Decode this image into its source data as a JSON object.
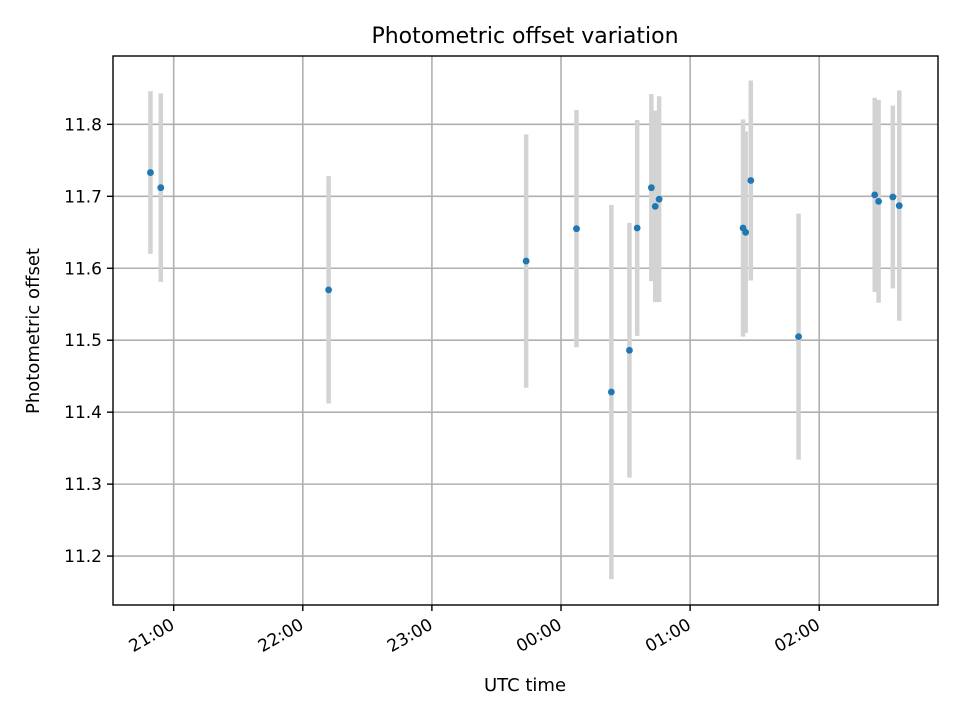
{
  "chart_data": {
    "type": "scatter",
    "title": "Photometric offset variation",
    "xlabel": "UTC time",
    "ylabel": "Photometric offset",
    "x_units": "hours since 21:00 UTC",
    "xlim": [
      -0.47,
      5.92
    ],
    "ylim": [
      11.132,
      11.895
    ],
    "x_ticks": [
      {
        "value": 0,
        "label": "21:00"
      },
      {
        "value": 1,
        "label": "22:00"
      },
      {
        "value": 2,
        "label": "23:00"
      },
      {
        "value": 3,
        "label": "00:00"
      },
      {
        "value": 4,
        "label": "01:00"
      },
      {
        "value": 5,
        "label": "02:00"
      }
    ],
    "y_ticks": [
      {
        "value": 11.2,
        "label": "11.2"
      },
      {
        "value": 11.3,
        "label": "11.3"
      },
      {
        "value": 11.4,
        "label": "11.4"
      },
      {
        "value": 11.5,
        "label": "11.5"
      },
      {
        "value": 11.6,
        "label": "11.6"
      },
      {
        "value": 11.7,
        "label": "11.7"
      },
      {
        "value": 11.8,
        "label": "11.8"
      }
    ],
    "grid": true,
    "marker_color": "#1f77b4",
    "errorbar_color": "#d3d3d3",
    "points": [
      {
        "x": -0.18,
        "y": 11.733,
        "err": 0.113
      },
      {
        "x": -0.1,
        "y": 11.712,
        "err": 0.131
      },
      {
        "x": 1.2,
        "y": 11.57,
        "err": 0.158
      },
      {
        "x": 2.73,
        "y": 11.61,
        "err": 0.176
      },
      {
        "x": 3.12,
        "y": 11.655,
        "err": 0.165
      },
      {
        "x": 3.39,
        "y": 11.428,
        "err": 0.26
      },
      {
        "x": 3.53,
        "y": 11.486,
        "err": 0.177
      },
      {
        "x": 3.59,
        "y": 11.656,
        "err": 0.15
      },
      {
        "x": 3.7,
        "y": 11.712,
        "err": 0.13
      },
      {
        "x": 3.73,
        "y": 11.686,
        "err": 0.133
      },
      {
        "x": 3.76,
        "y": 11.696,
        "err": 0.143
      },
      {
        "x": 4.41,
        "y": 11.656,
        "err": 0.151
      },
      {
        "x": 4.43,
        "y": 11.65,
        "err": 0.14
      },
      {
        "x": 4.47,
        "y": 11.722,
        "err": 0.139
      },
      {
        "x": 4.84,
        "y": 11.505,
        "err": 0.171
      },
      {
        "x": 5.43,
        "y": 11.702,
        "err": 0.135
      },
      {
        "x": 5.46,
        "y": 11.693,
        "err": 0.141
      },
      {
        "x": 5.57,
        "y": 11.699,
        "err": 0.127
      },
      {
        "x": 5.62,
        "y": 11.687,
        "err": 0.16
      }
    ]
  }
}
